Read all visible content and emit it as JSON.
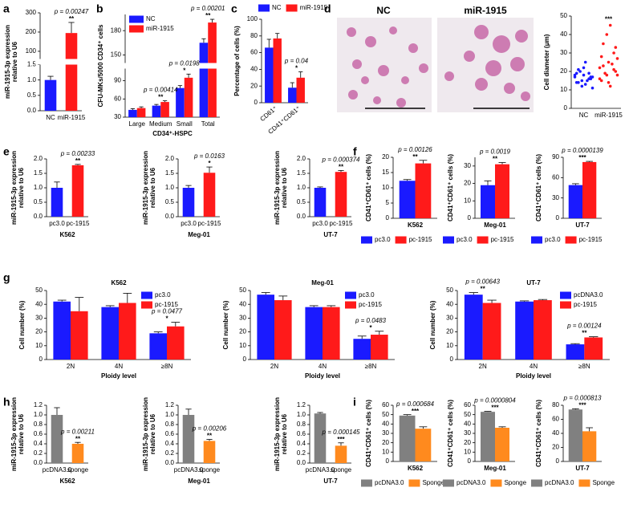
{
  "panel_labels": [
    "a",
    "b",
    "c",
    "d",
    "e",
    "f",
    "g",
    "h",
    "i"
  ],
  "micrographs": [
    "NC",
    "miR-1915"
  ],
  "chart_data": [
    {
      "type": "bar",
      "ylabel": [
        "miR-1915-3p expression",
        "relative to U6"
      ],
      "categories": [
        "NC",
        "miR-1915"
      ],
      "values": [
        1.0,
        195
      ],
      "errors": [
        0.12,
        55
      ],
      "colors": [
        "#1a1aff",
        "#ff1a1a"
      ],
      "y_segments": [
        {
          "ylim": [
            0,
            1.5
          ],
          "yticks": [
            {
              "value": 0,
              "label": "0.0"
            },
            0.5,
            {
              "value": 1,
              "label": "1.0"
            },
            1.5
          ]
        },
        {
          "ylim": [
            60,
            300
          ],
          "yticks": [
            100,
            200,
            300
          ]
        }
      ],
      "p_labels": [
        null,
        "p = 0.00247"
      ],
      "sig": [
        null,
        "**"
      ]
    },
    {
      "type": "bar",
      "ylabel": "CFU-MKs/5000 CD34⁺ cells",
      "xlabel": "CD34⁺-HSPC",
      "categories": [
        "Large",
        "Medium",
        "Small",
        "Total"
      ],
      "series": [
        {
          "name": "NC",
          "color": "#1a1aff",
          "values": [
            42,
            49,
            78,
            165
          ],
          "errors": [
            2,
            2,
            4,
            5
          ]
        },
        {
          "name": "miR-1915",
          "color": "#ff1a1a",
          "values": [
            45,
            55,
            95,
            190
          ],
          "errors": [
            2,
            2,
            6,
            4
          ]
        }
      ],
      "y_segments": [
        {
          "ylim": [
            30,
            110
          ],
          "yticks": [
            30,
            60,
            90
          ]
        },
        {
          "ylim": [
            140,
            200
          ],
          "yticks": [
            150,
            180
          ]
        }
      ],
      "legend": "top-left",
      "p_labels": [
        null,
        "p = 0.00414",
        "p = 0.0198",
        "p = 0.00201"
      ],
      "sig": [
        null,
        "**",
        "*",
        "**"
      ]
    },
    {
      "type": "bar",
      "ylabel": "Percentage of cells (%)",
      "categories": [
        "CD61⁺",
        "CD41⁺CD61⁺"
      ],
      "series": [
        {
          "name": "NC",
          "color": "#1a1aff",
          "values": [
            66,
            18
          ],
          "errors": [
            10,
            6
          ]
        },
        {
          "name": "miR-1915",
          "color": "#ff1a1a",
          "values": [
            77,
            30
          ],
          "errors": [
            6,
            7
          ]
        }
      ],
      "ylim": [
        0,
        100
      ],
      "yticks": [
        0,
        20,
        40,
        60,
        80,
        100
      ],
      "legend": "top",
      "p_labels": [
        null,
        "p = 0.04"
      ],
      "sig": [
        null,
        "*"
      ]
    },
    {
      "type": "strip",
      "ylabel": "Cell diameter (μm)",
      "categories": [
        "NC",
        "miR-1915"
      ],
      "series": [
        {
          "color": "#1a1aff",
          "values": [
            17,
            15,
            19,
            14,
            18,
            16,
            21,
            13,
            17,
            20,
            15,
            18,
            12,
            16,
            19,
            22,
            17,
            14,
            25,
            11
          ]
        },
        {
          "color": "#ff1a1a",
          "values": [
            22,
            18,
            30,
            15,
            25,
            20,
            35,
            12,
            27,
            19,
            24,
            16,
            40,
            21,
            28,
            14,
            33,
            23,
            45,
            18
          ]
        }
      ],
      "ylim": [
        0,
        50
      ],
      "yticks": [
        0,
        10,
        20,
        30,
        40,
        50
      ],
      "sig": [
        null,
        "***"
      ]
    },
    {
      "type": "bar",
      "ylabel": [
        "miR-1915-3p expression",
        "relative to U6"
      ],
      "xlabel": "K562",
      "categories": [
        "pc3.0",
        "pc-1915"
      ],
      "values": [
        1.0,
        1.78
      ],
      "errors": [
        0.2,
        0.03
      ],
      "colors": [
        "#1a1aff",
        "#ff1a1a"
      ],
      "ylim": [
        0,
        2
      ],
      "yticks": [
        {
          "value": 0,
          "label": "0.0"
        },
        0.5,
        {
          "value": 1,
          "label": "1.0"
        },
        1.5,
        {
          "value": 2,
          "label": "2.0"
        }
      ],
      "p_labels": [
        null,
        "p = 0.00233"
      ],
      "sig": [
        null,
        "**"
      ]
    },
    {
      "type": "bar",
      "ylabel": [
        "miR-1915-3p expression",
        "relative to U6"
      ],
      "xlabel": "Meg-01",
      "categories": [
        "pc3.0",
        "pc-1915"
      ],
      "values": [
        1.0,
        1.52
      ],
      "errors": [
        0.08,
        0.2
      ],
      "colors": [
        "#1a1aff",
        "#ff1a1a"
      ],
      "ylim": [
        0,
        2
      ],
      "yticks": [
        {
          "value": 0,
          "label": "0.0"
        },
        0.5,
        {
          "value": 1,
          "label": "1.0"
        },
        1.5,
        {
          "value": 2,
          "label": "2.0"
        }
      ],
      "p_labels": [
        null,
        "p = 0.0163"
      ],
      "sig": [
        null,
        "*"
      ]
    },
    {
      "type": "bar",
      "ylabel": [
        "miR-1915-3p expression",
        "relative to U6"
      ],
      "xlabel": "UT-7",
      "categories": [
        "pc3.0",
        "pc-1915"
      ],
      "values": [
        1.0,
        1.55
      ],
      "errors": [
        0.03,
        0.05
      ],
      "colors": [
        "#1a1aff",
        "#ff1a1a"
      ],
      "ylim": [
        0,
        2
      ],
      "yticks": [
        {
          "value": 0,
          "label": "0.0"
        },
        0.5,
        {
          "value": 1,
          "label": "1.0"
        },
        1.5,
        {
          "value": 2,
          "label": "2.0"
        }
      ],
      "p_labels": [
        null,
        "p = 0.000374"
      ],
      "sig": [
        null,
        "**"
      ]
    },
    {
      "type": "bar",
      "ylabel": "CD41⁺CD61⁺ cells (%)",
      "categories": [
        "K562"
      ],
      "series": [
        {
          "name": "pc3.0",
          "color": "#1a1aff",
          "values": [
            12.3
          ],
          "errors": [
            0.4
          ]
        },
        {
          "name": "pc-1915",
          "color": "#ff1a1a",
          "values": [
            18
          ],
          "errors": [
            1
          ]
        }
      ],
      "ylim": [
        0,
        20
      ],
      "yticks": [
        0,
        5,
        10,
        15,
        20
      ],
      "legend": "bottom",
      "p_labels": [
        "p = 0.00126"
      ],
      "sig": [
        "**"
      ]
    },
    {
      "type": "bar",
      "ylabel": "CD41⁺CD61⁺ cells (%)",
      "categories": [
        "Meg-01"
      ],
      "series": [
        {
          "name": "pc3.0",
          "color": "#1a1aff",
          "values": [
            19
          ],
          "errors": [
            2.5
          ]
        },
        {
          "name": "pc-1915",
          "color": "#ff1a1a",
          "values": [
            31
          ],
          "errors": [
            1
          ]
        }
      ],
      "ylim": [
        0,
        35
      ],
      "yticks": [
        0,
        10,
        20,
        30
      ],
      "legend": "bottom",
      "p_labels": [
        "p = 0.0019"
      ],
      "sig": [
        "**"
      ]
    },
    {
      "type": "bar",
      "ylabel": "CD41⁺CD61⁺ cells (%)",
      "categories": [
        "UT-7"
      ],
      "series": [
        {
          "name": "pc3.0",
          "color": "#1a1aff",
          "values": [
            49
          ],
          "errors": [
            2
          ]
        },
        {
          "name": "pc-1915",
          "color": "#ff1a1a",
          "values": [
            83
          ],
          "errors": [
            1
          ]
        }
      ],
      "ylim": [
        0,
        90
      ],
      "yticks": [
        0,
        30,
        60,
        90
      ],
      "legend": "bottom",
      "p_labels": [
        "p = 0.0000139"
      ],
      "sig": [
        "***"
      ]
    },
    {
      "type": "bar",
      "title": "K562",
      "ylabel": "Cell number (%)",
      "xlabel": "Ploidy level",
      "categories": [
        "2N",
        "4N",
        "≥8N"
      ],
      "series": [
        {
          "name": "pc3.0",
          "color": "#1a1aff",
          "values": [
            42,
            38,
            19
          ],
          "errors": [
            1,
            1,
            1
          ]
        },
        {
          "name": "pc-1915",
          "color": "#ff1a1a",
          "values": [
            35,
            41,
            24
          ],
          "errors": [
            10,
            7,
            3
          ]
        }
      ],
      "ylim": [
        0,
        50
      ],
      "yticks": [
        0,
        10,
        20,
        30,
        40,
        50
      ],
      "legend": "top-right",
      "p_labels": [
        null,
        null,
        "p = 0.0477"
      ],
      "sig": [
        null,
        null,
        "*"
      ]
    },
    {
      "type": "bar",
      "title": "Meg-01",
      "ylabel": "Cell number (%)",
      "xlabel": "Ploidy level",
      "categories": [
        "2N",
        "4N",
        "≥8N"
      ],
      "series": [
        {
          "name": "pc3.0",
          "color": "#1a1aff",
          "values": [
            47,
            38,
            15
          ],
          "errors": [
            1.5,
            1,
            2
          ]
        },
        {
          "name": "pc-1915",
          "color": "#ff1a1a",
          "values": [
            43,
            38,
            18
          ],
          "errors": [
            3,
            1,
            2.5
          ]
        }
      ],
      "ylim": [
        0,
        50
      ],
      "yticks": [
        0,
        10,
        20,
        30,
        40,
        50
      ],
      "legend": "top-right",
      "p_labels": [
        null,
        null,
        "p = 0.0483"
      ],
      "sig": [
        null,
        null,
        "*"
      ]
    },
    {
      "type": "bar",
      "title": "UT-7",
      "ylabel": "Cell number (%)",
      "xlabel": "Ploidy level",
      "categories": [
        "2N",
        "4N",
        "≥8N"
      ],
      "series": [
        {
          "name": "pcDNA3.0",
          "color": "#1a1aff",
          "values": [
            47,
            42,
            11
          ],
          "errors": [
            1.5,
            0.5,
            0.5
          ]
        },
        {
          "name": "pc-1915",
          "color": "#ff1a1a",
          "values": [
            41,
            43,
            16
          ],
          "errors": [
            2,
            0.5,
            0.5
          ]
        }
      ],
      "ylim": [
        0,
        50
      ],
      "yticks": [
        0,
        10,
        20,
        30,
        40,
        50
      ],
      "legend": "top-right",
      "p_labels": [
        "p = 0.00643",
        null,
        "p = 0.00124"
      ],
      "sig": [
        "**",
        null,
        "**"
      ]
    },
    {
      "type": "bar",
      "ylabel": [
        "miR-1915-3p expression",
        "relative to U6"
      ],
      "xlabel": "K562",
      "categories": [
        "pcDNA3.0",
        "sponge"
      ],
      "values": [
        1.0,
        0.4
      ],
      "errors": [
        0.15,
        0.03
      ],
      "colors": [
        "#808080",
        "#ff8a1e"
      ],
      "ylim": [
        0,
        1.2
      ],
      "yticks": [
        {
          "value": 0,
          "label": "0.0"
        },
        0.2,
        0.4,
        0.6,
        0.8,
        {
          "value": 1,
          "label": "1.0"
        },
        1.2
      ],
      "p_labels": [
        null,
        "p = 0.00211"
      ],
      "sig": [
        null,
        "**"
      ]
    },
    {
      "type": "bar",
      "ylabel": [
        "miR-1915-3p expression",
        "relative to U6"
      ],
      "xlabel": "Meg-01",
      "categories": [
        "pcDNA3.0",
        "sponge"
      ],
      "values": [
        1.0,
        0.46
      ],
      "errors": [
        0.12,
        0.03
      ],
      "colors": [
        "#808080",
        "#ff8a1e"
      ],
      "ylim": [
        0,
        1.2
      ],
      "yticks": [
        {
          "value": 0,
          "label": "0.0"
        },
        0.2,
        0.4,
        0.6,
        0.8,
        {
          "value": 1,
          "label": "1.0"
        },
        1.2
      ],
      "p_labels": [
        null,
        "p = 0.00206"
      ],
      "sig": [
        null,
        "**"
      ]
    },
    {
      "type": "bar",
      "ylabel": [
        "miR-1915-3p expression",
        "relative to U6"
      ],
      "xlabel": "UT-7",
      "categories": [
        "pcDNA3.0",
        "sponge"
      ],
      "values": [
        1.03,
        0.36
      ],
      "errors": [
        0.02,
        0.06
      ],
      "colors": [
        "#808080",
        "#ff8a1e"
      ],
      "ylim": [
        0,
        1.2
      ],
      "yticks": [
        {
          "value": 0,
          "label": "0.0"
        },
        0.2,
        0.4,
        0.6,
        0.8,
        {
          "value": 1,
          "label": "1.0"
        },
        1.2
      ],
      "p_labels": [
        null,
        "p = 0.000145"
      ],
      "sig": [
        null,
        "***"
      ]
    },
    {
      "type": "bar",
      "ylabel": "CD41⁺CD61⁺ cells (%)",
      "categories": [
        "K562"
      ],
      "series": [
        {
          "name": "pcDNA3.0",
          "color": "#808080",
          "values": [
            49
          ],
          "errors": [
            1
          ]
        },
        {
          "name": "Sponge",
          "color": "#ff8a1e",
          "values": [
            35
          ],
          "errors": [
            2
          ]
        }
      ],
      "ylim": [
        0,
        60
      ],
      "yticks": [
        0,
        10,
        20,
        30,
        40,
        50,
        60
      ],
      "legend": "bottom",
      "p_labels": [
        "p = 0.000684"
      ],
      "sig": [
        "***"
      ]
    },
    {
      "type": "bar",
      "ylabel": "CD41⁺CD61⁺ cells (%)",
      "categories": [
        "Meg-01"
      ],
      "series": [
        {
          "name": "pcDNA3.0",
          "color": "#808080",
          "values": [
            53
          ],
          "errors": [
            0.5
          ]
        },
        {
          "name": "Sponge",
          "color": "#ff8a1e",
          "values": [
            36
          ],
          "errors": [
            1
          ]
        }
      ],
      "ylim": [
        0,
        60
      ],
      "yticks": [
        0,
        10,
        20,
        30,
        40,
        50,
        60
      ],
      "legend": "bottom",
      "p_labels": [
        "p = 0.0000804"
      ],
      "sig": [
        "***"
      ]
    },
    {
      "type": "bar",
      "ylabel": "CD41⁺CD61⁺ cells (%)",
      "categories": [
        "UT-7"
      ],
      "series": [
        {
          "name": "pcDNA3.0",
          "color": "#808080",
          "values": [
            74
          ],
          "errors": [
            1
          ]
        },
        {
          "name": "Sponge",
          "color": "#ff8a1e",
          "values": [
            43
          ],
          "errors": [
            5
          ]
        }
      ],
      "ylim": [
        0,
        80
      ],
      "yticks": [
        0,
        20,
        40,
        60,
        80
      ],
      "legend": "bottom",
      "p_labels": [
        "p = 0.000813"
      ],
      "sig": [
        "***"
      ]
    }
  ]
}
